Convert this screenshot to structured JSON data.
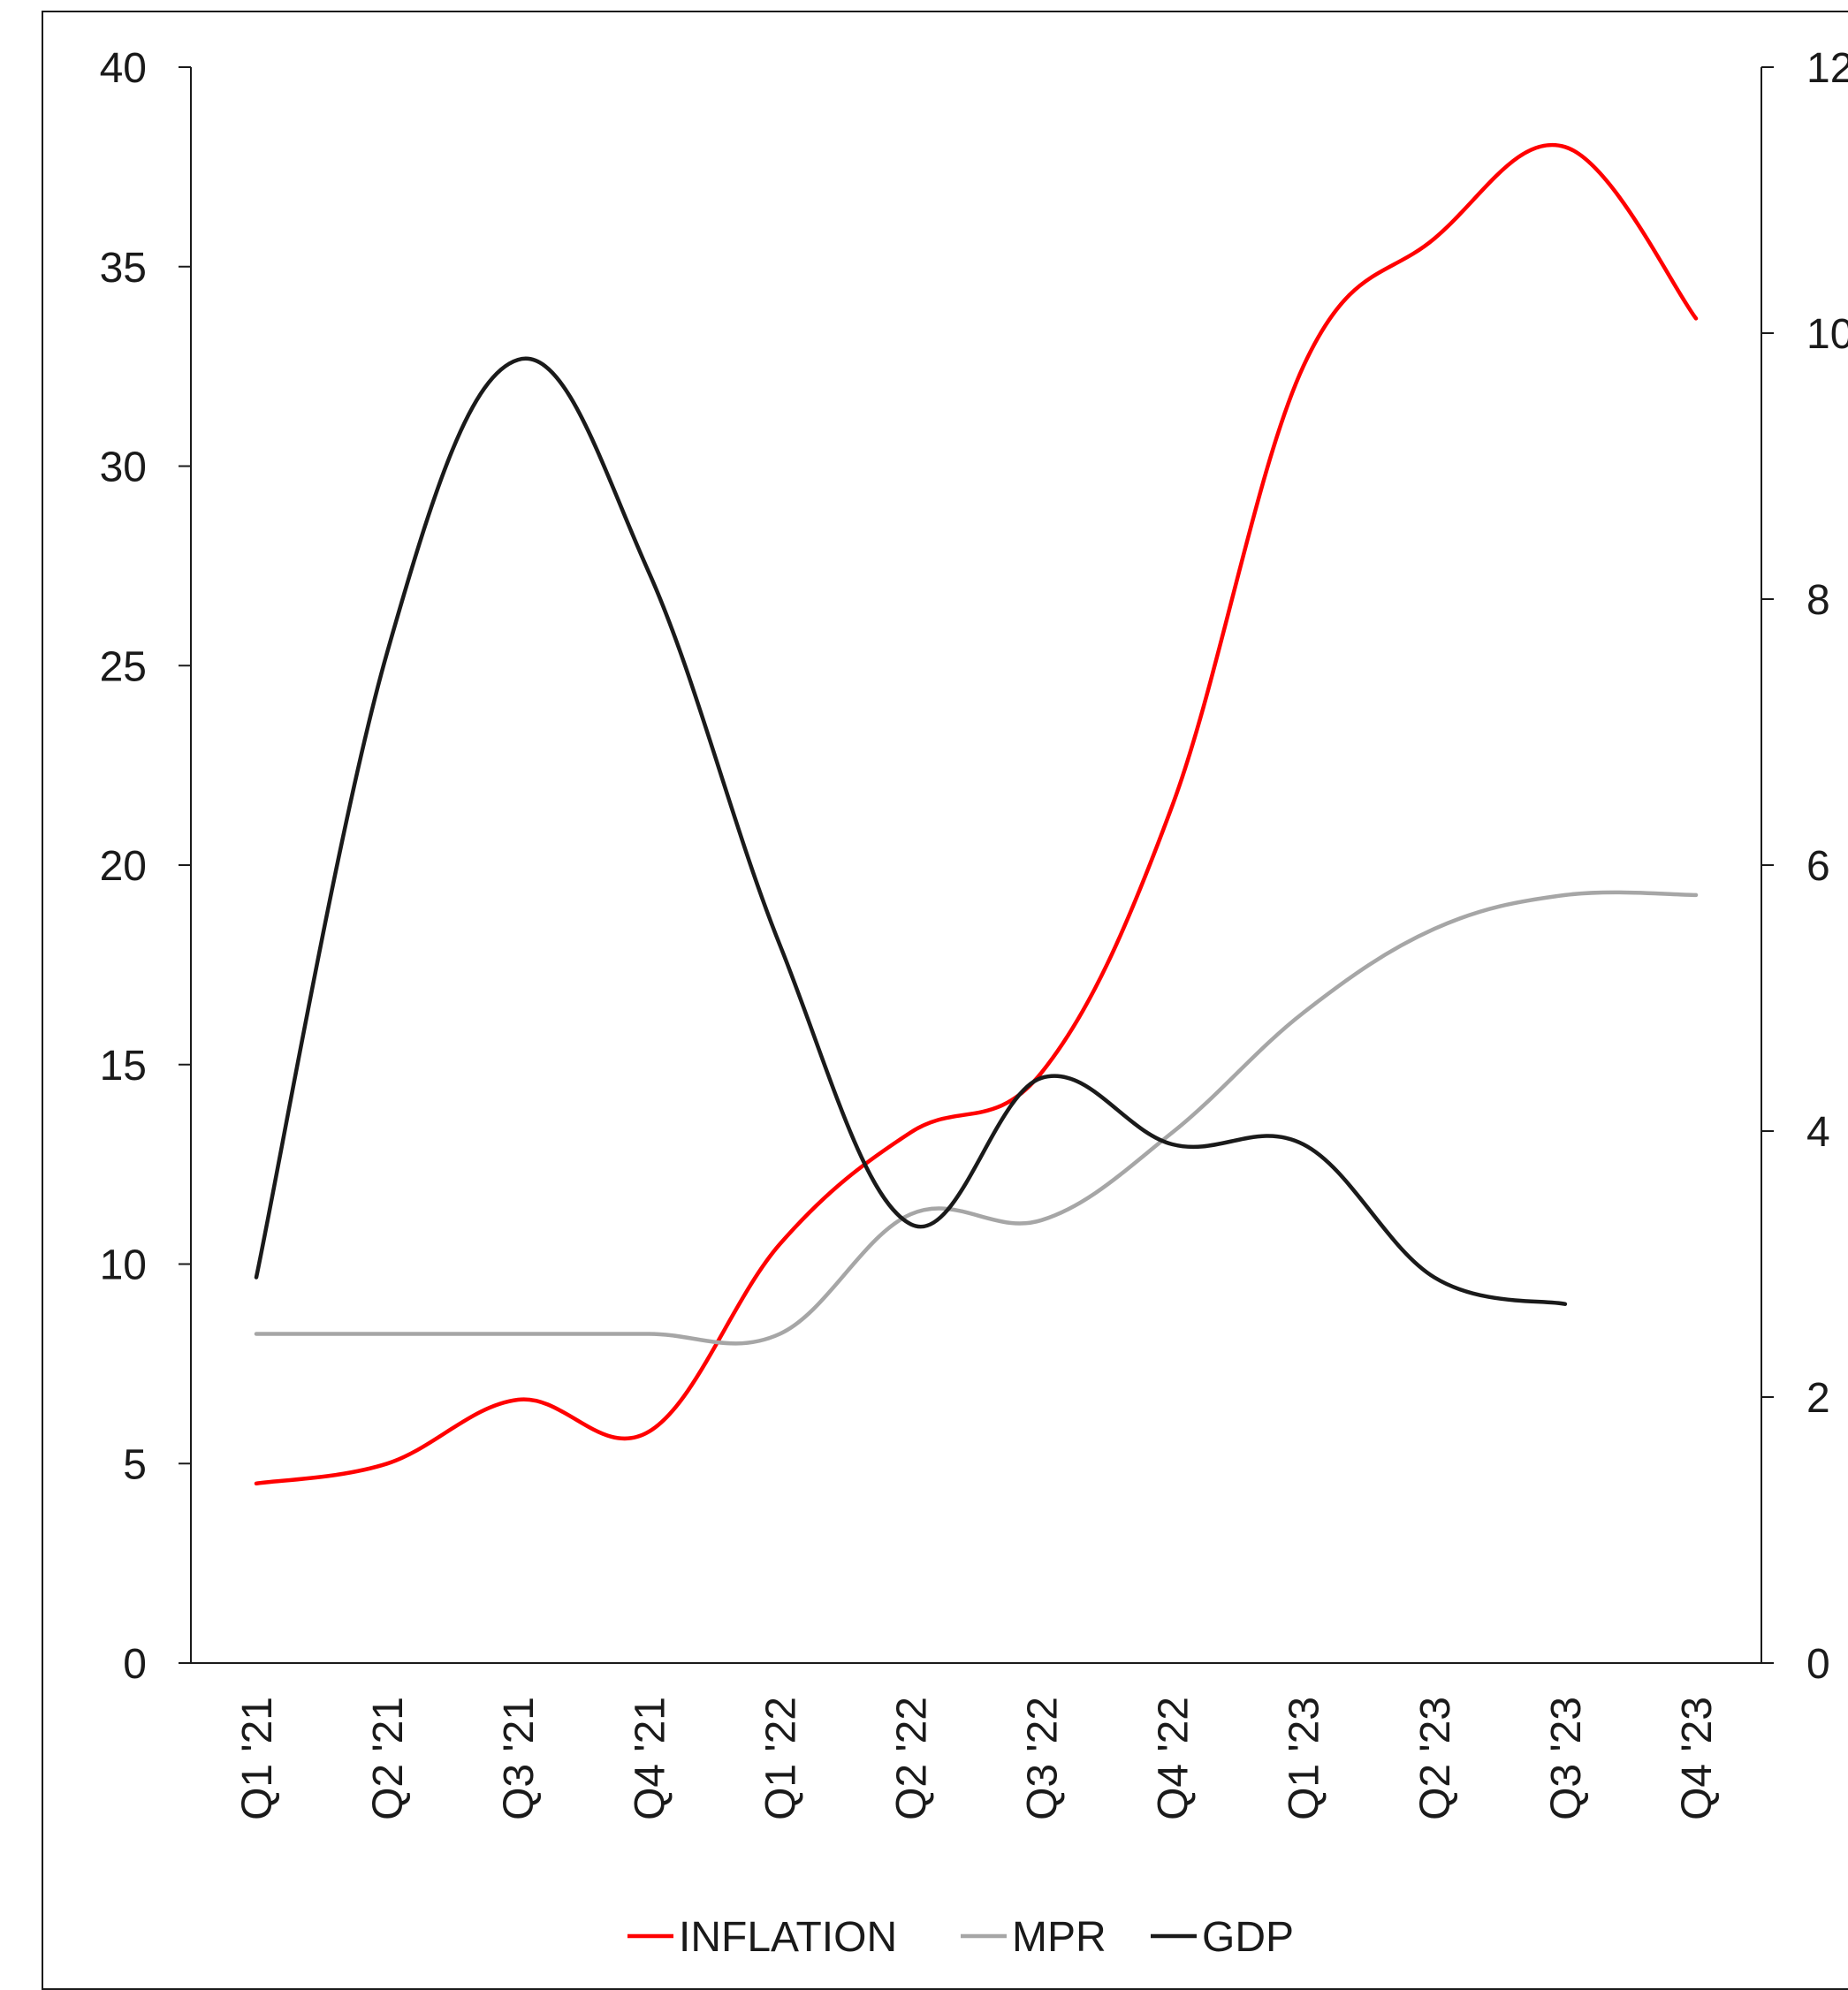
{
  "chart_data": {
    "type": "line",
    "title": "",
    "xlabel": "",
    "ylabel": "",
    "categories": [
      "Q1 '21",
      "Q2 '21",
      "Q3 '21",
      "Q4 '21",
      "Q1 '22",
      "Q2 '22",
      "Q3 '22",
      "Q4 '22",
      "Q1 '23",
      "Q2 '23",
      "Q3 '23",
      "Q4 '23"
    ],
    "y_left": {
      "ylim": [
        0,
        40
      ],
      "ticks": [
        "0",
        "5",
        "10",
        "15",
        "20",
        "25",
        "30",
        "35",
        "40"
      ]
    },
    "y_right": {
      "ylim": [
        0,
        12
      ],
      "ticks": [
        "0",
        "2",
        "4",
        "6",
        "8",
        "10",
        "12"
      ]
    },
    "series": [
      {
        "name": "INFLATION",
        "axis": "left",
        "color": "#ff0000",
        "values": [
          4.5,
          5.0,
          6.6,
          5.8,
          10.5,
          13.3,
          14.8,
          21.5,
          32.5,
          35.7,
          38.0,
          33.7
        ]
      },
      {
        "name": "MPR",
        "axis": "left",
        "color": "#a6a6a6",
        "values": [
          8.25,
          8.25,
          8.25,
          8.25,
          8.25,
          11.25,
          11.1,
          13.3,
          16.3,
          18.4,
          19.25,
          19.25
        ]
      },
      {
        "name": "GDP",
        "axis": "right",
        "color": "#1a1a1a",
        "values": [
          2.9,
          7.6,
          9.8,
          8.2,
          5.4,
          3.3,
          4.4,
          3.9,
          3.9,
          2.9,
          2.7,
          null
        ]
      }
    ],
    "grid": false,
    "legend": "bottom-center"
  }
}
